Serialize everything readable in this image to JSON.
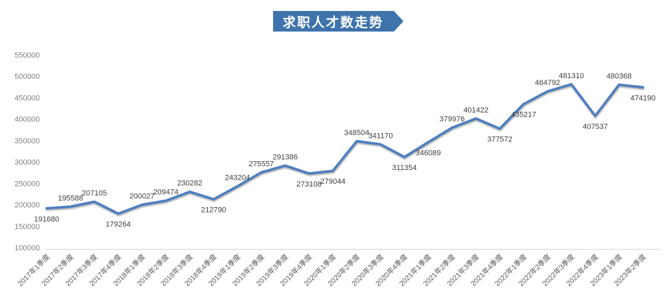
{
  "title": {
    "text": "求职人才数走势"
  },
  "chart_data": {
    "type": "line",
    "title": "求职人才数走势",
    "categories": [
      "2017年1季度",
      "2017年2季度",
      "2017年3季度",
      "2017年4季度",
      "2018年1季度",
      "2018年2季度",
      "2018年3季度",
      "2018年4季度",
      "2019年1季度",
      "2019年2季度",
      "2019年3季度",
      "2019年4季度",
      "2020年1季度",
      "2020年2季度",
      "2020年3季度",
      "2020年4季度",
      "2021年1季度",
      "2021年2季度",
      "2021年3季度",
      "2021年4季度",
      "2022年1季度",
      "2022年2季度",
      "2022年3季度",
      "2022年4季度",
      "2023年1季度",
      "2023年2季度"
    ],
    "values": [
      191680,
      195588,
      207105,
      179264,
      200027,
      209474,
      230282,
      212790,
      243204,
      275557,
      291386,
      273108,
      279044,
      348504,
      341170,
      311354,
      346089,
      379976,
      401422,
      377572,
      435217,
      464792,
      481310,
      407537,
      480368,
      474190
    ],
    "label_side": [
      "below",
      "above",
      "above",
      "below",
      "above",
      "above",
      "above",
      "below",
      "above",
      "above",
      "above",
      "below",
      "below",
      "above",
      "above",
      "below",
      "below",
      "above",
      "above",
      "below",
      "below",
      "above",
      "above",
      "below",
      "above",
      "below"
    ],
    "yticks": [
      100000,
      150000,
      200000,
      250000,
      300000,
      350000,
      400000,
      450000,
      500000,
      550000
    ],
    "ylim": [
      100000,
      550000
    ],
    "xlabel": "",
    "ylabel": "",
    "grid": false,
    "legend": "none",
    "line_color": "#4d7ebf",
    "data_label_color": "#3f3f3f",
    "ytick_color": "#7f7f7f",
    "xtick_color": "#595959",
    "axis_line_color": "#d9d9d9",
    "banner_color": "#3e73ac",
    "banner_text_color": "#ffffff"
  }
}
